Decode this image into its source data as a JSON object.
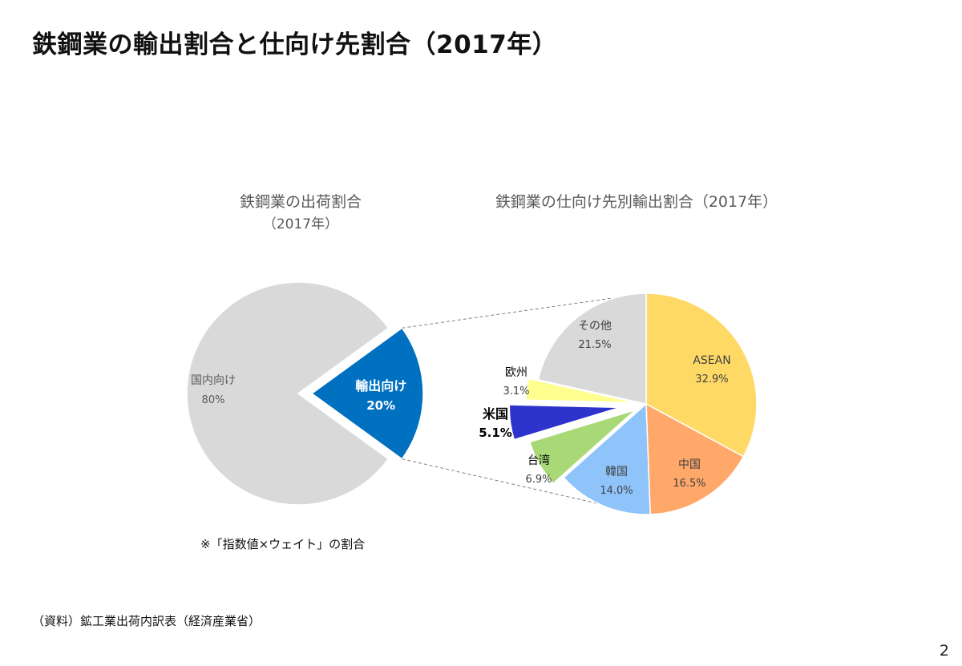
{
  "slide": {
    "title": "鉄鋼業の輸出割合と仕向け先割合（2017年）",
    "note": "※「指数値×ウェイト」の割合",
    "source": "（資料）鉱工業出荷内訳表（経済産業省）",
    "page_number": "2"
  },
  "chart_data": [
    {
      "type": "pie",
      "title": "鉄鋼業の出荷割合",
      "subtitle": "（2017年）",
      "slices": [
        {
          "label": "国内向け",
          "value": 80,
          "value_label": "80%",
          "color": "#d9d9d9",
          "exploded": false
        },
        {
          "label": "輸出向け",
          "value": 20,
          "value_label": "20%",
          "color": "#0070c0",
          "exploded": true
        }
      ]
    },
    {
      "type": "pie",
      "title": "鉄鋼業の仕向け先別輸出割合（2017年）",
      "slices": [
        {
          "label": "ASEAN",
          "value": 32.9,
          "value_label": "32.9%",
          "color": "#ffd966",
          "exploded": false
        },
        {
          "label": "中国",
          "value": 16.5,
          "value_label": "16.5%",
          "color": "#ffa869",
          "exploded": false
        },
        {
          "label": "韓国",
          "value": 14.0,
          "value_label": "14.0%",
          "color": "#8fc4fb",
          "exploded": false
        },
        {
          "label": "台湾",
          "value": 6.9,
          "value_label": "6.9%",
          "color": "#a9d977",
          "exploded": true
        },
        {
          "label": "米国",
          "value": 5.1,
          "value_label": "5.1%",
          "color": "#2e33cc",
          "exploded": true,
          "emphasis": true
        },
        {
          "label": "欧州",
          "value": 3.1,
          "value_label": "3.1%",
          "color": "#ffff8f",
          "exploded": true
        },
        {
          "label": "その他",
          "value": 21.5,
          "value_label": "21.5%",
          "color": "#d9d9d9",
          "exploded": false
        }
      ]
    }
  ]
}
